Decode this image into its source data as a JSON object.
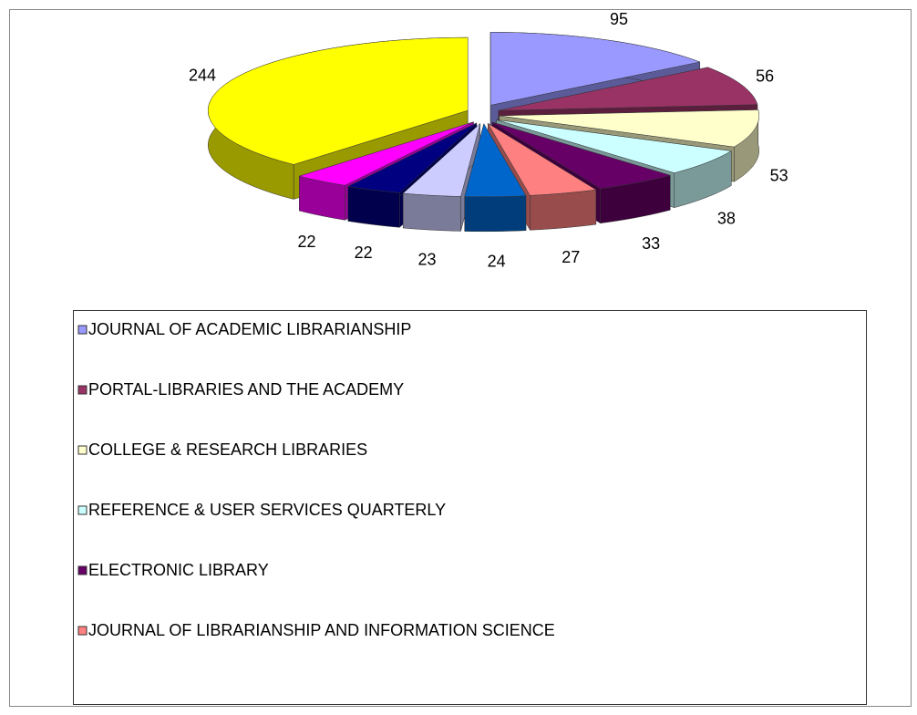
{
  "chart_data": {
    "type": "pie3d",
    "categories": [
      "JOURNAL OF ACADEMIC LIBRARIANSHIP",
      "PORTAL-LIBRARIES AND THE ACADEMY",
      "COLLEGE & RESEARCH LIBRARIES",
      "REFERENCE & USER SERVICES QUARTERLY",
      "ELECTRONIC LIBRARY",
      "JOURNAL OF LIBRARIANSHIP AND INFORMATION SCIENCE",
      null,
      null,
      null,
      null,
      null
    ],
    "values": [
      95,
      56,
      53,
      38,
      33,
      27,
      24,
      23,
      22,
      22,
      244
    ],
    "colors": [
      "#9999ff",
      "#993366",
      "#ffffcc",
      "#ccffff",
      "#660066",
      "#ff8080",
      "#0066cc",
      "#ccccff",
      "#000080",
      "#ff00ff",
      "#ffff00"
    ],
    "legend": "bottom"
  }
}
